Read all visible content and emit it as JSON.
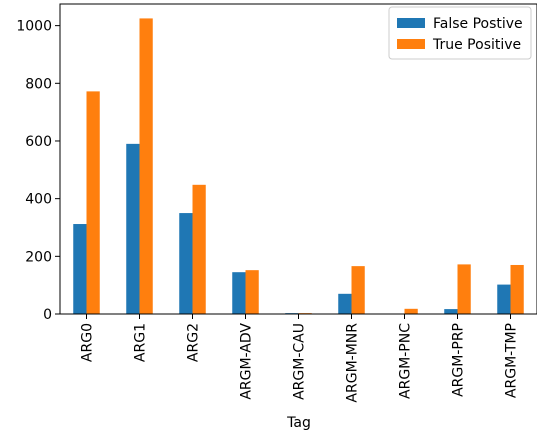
{
  "chart_data": {
    "type": "bar",
    "title": "",
    "xlabel": "Tag",
    "ylabel": "",
    "ylim": [
      0,
      1075
    ],
    "yticks": [
      0,
      200,
      400,
      600,
      800,
      1000
    ],
    "categories": [
      "ARG0",
      "ARG1",
      "ARG2",
      "ARGM-ADV",
      "ARGM-CAU",
      "ARGM-MNR",
      "ARGM-PNC",
      "ARGM-PRP",
      "ARGM-TMP"
    ],
    "series": [
      {
        "name": "False Postive",
        "color": "#1f77b4",
        "values": [
          312,
          590,
          350,
          145,
          3,
          70,
          0,
          17,
          102
        ]
      },
      {
        "name": "True Positive",
        "color": "#ff7f0e",
        "values": [
          772,
          1025,
          448,
          152,
          3,
          166,
          18,
          172,
          170
        ]
      }
    ],
    "legend_position": "top-right",
    "grid": false
  }
}
